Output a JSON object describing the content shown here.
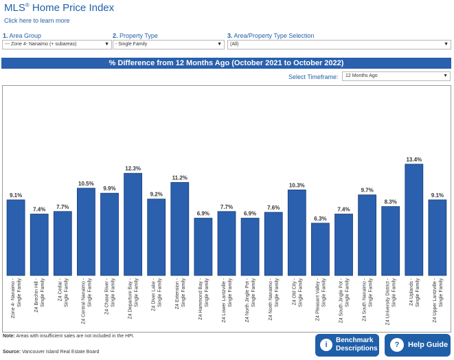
{
  "header": {
    "title_main": "MLS",
    "title_reg": "®",
    "title_rest": " Home Price Index",
    "learn_more": "Click here to learn more"
  },
  "filters": [
    {
      "num": "1.",
      "label": "Area Group",
      "value": "--- Zone 4- Nanaimo (+ subareas)"
    },
    {
      "num": "2.",
      "label": "Property Type",
      "value": "- Single Family"
    },
    {
      "num": "3.",
      "label": "Area/Property Type Selection",
      "value": "(All)"
    }
  ],
  "banner": "% Difference from 12 Months Ago (October 2021 to October 2022)",
  "timeframe": {
    "label": "Select Timeframe:",
    "value": "12 Months Ago"
  },
  "chart_data": {
    "type": "bar",
    "categories": [
      "Zone 4- Nanaimo - Single Family",
      "Z4 Brechin Hill - Single Family",
      "Z4 Cedar - Single Family",
      "Z4 Central Nanaimo - Single Family",
      "Z4 Chase River - Single Family",
      "Z4 Departure Bay - Single Family",
      "Z4 Diver Lake - Single Family",
      "Z4 Extension - Single Family",
      "Z4 Hammond Bay - Single Family",
      "Z4 Lower Lantzville - Single Family",
      "Z4 North Jingle Pot - Single Family",
      "Z4 North Nanaimo - Single Family",
      "Z4 Old City - Single Family",
      "Z4 Pleasant Valley - Single Family",
      "Z4 South Jingle Pot - Single Family",
      "Z4 South Nanaimo - Single Family",
      "Z4 University District - Single Family",
      "Z4 Uplands - Single Family",
      "Z4 Upper Lantzville - Single Family"
    ],
    "values": [
      9.1,
      7.4,
      7.7,
      10.5,
      9.9,
      12.3,
      9.2,
      11.2,
      6.9,
      7.7,
      6.9,
      7.6,
      10.3,
      6.3,
      7.4,
      9.7,
      8.3,
      13.4,
      9.1
    ],
    "value_labels": [
      "9.1%",
      "7.4%",
      "7.7%",
      "10.5%",
      "9.9%",
      "12.3%",
      "9.2%",
      "11.2%",
      "6.9%",
      "7.7%",
      "6.9%",
      "7.6%",
      "10.3%",
      "6.3%",
      "7.4%",
      "9.7%",
      "8.3%",
      "13.4%",
      "9.1%"
    ],
    "ylim": [
      0,
      15
    ],
    "bar_color": "#2a60ad",
    "grid": false
  },
  "note_label": "Note:",
  "note_text": " Areas with insufficient sales are not included in the HPI.",
  "source_label": "Source:",
  "source_text": " Vancouver Island Real Estate Board",
  "buttons": {
    "benchmark_line1": "Benchmark",
    "benchmark_line2": "Descriptions",
    "benchmark_icon": "i",
    "help": "Help Guide",
    "help_icon": "?"
  }
}
